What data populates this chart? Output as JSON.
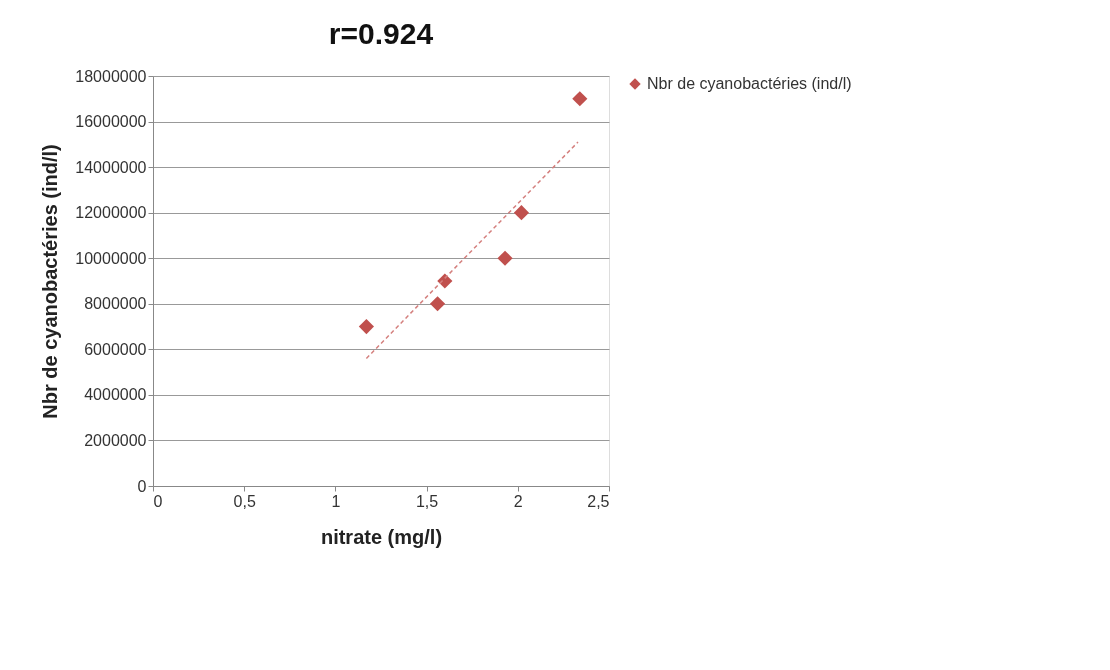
{
  "chart_data": {
    "type": "scatter",
    "title": "r=0.924",
    "xlabel": "nitrate (mg/l)",
    "ylabel": "Nbr de cyanobactéries (ind/l)",
    "series": [
      {
        "name": "Nbr de cyanobactéries (ind/l)",
        "color": "#c0504d",
        "x": [
          1.17,
          1.56,
          1.6,
          1.93,
          2.02,
          2.34
        ],
        "values": [
          7000000,
          8000000,
          9000000,
          10000000,
          12000000,
          17000000
        ],
        "marker": "diamond"
      },
      {
        "type": "line",
        "color": "#d47f7d",
        "x": [
          1.17,
          2.33
        ],
        "values": [
          5600000,
          15100000
        ],
        "line_style": "dashed"
      }
    ],
    "xlim": [
      0,
      2.5
    ],
    "xticks": [
      0,
      {
        "value": 0.5,
        "label": "0,5"
      },
      1,
      {
        "value": 1.5,
        "label": "1,5"
      },
      2,
      {
        "value": 2.5,
        "label": "2,5"
      }
    ],
    "ylim": [
      0,
      18000000
    ],
    "yticks": [
      0,
      2000000,
      4000000,
      6000000,
      8000000,
      10000000,
      12000000,
      14000000,
      16000000,
      18000000
    ],
    "grid": "y",
    "legend": "right"
  }
}
